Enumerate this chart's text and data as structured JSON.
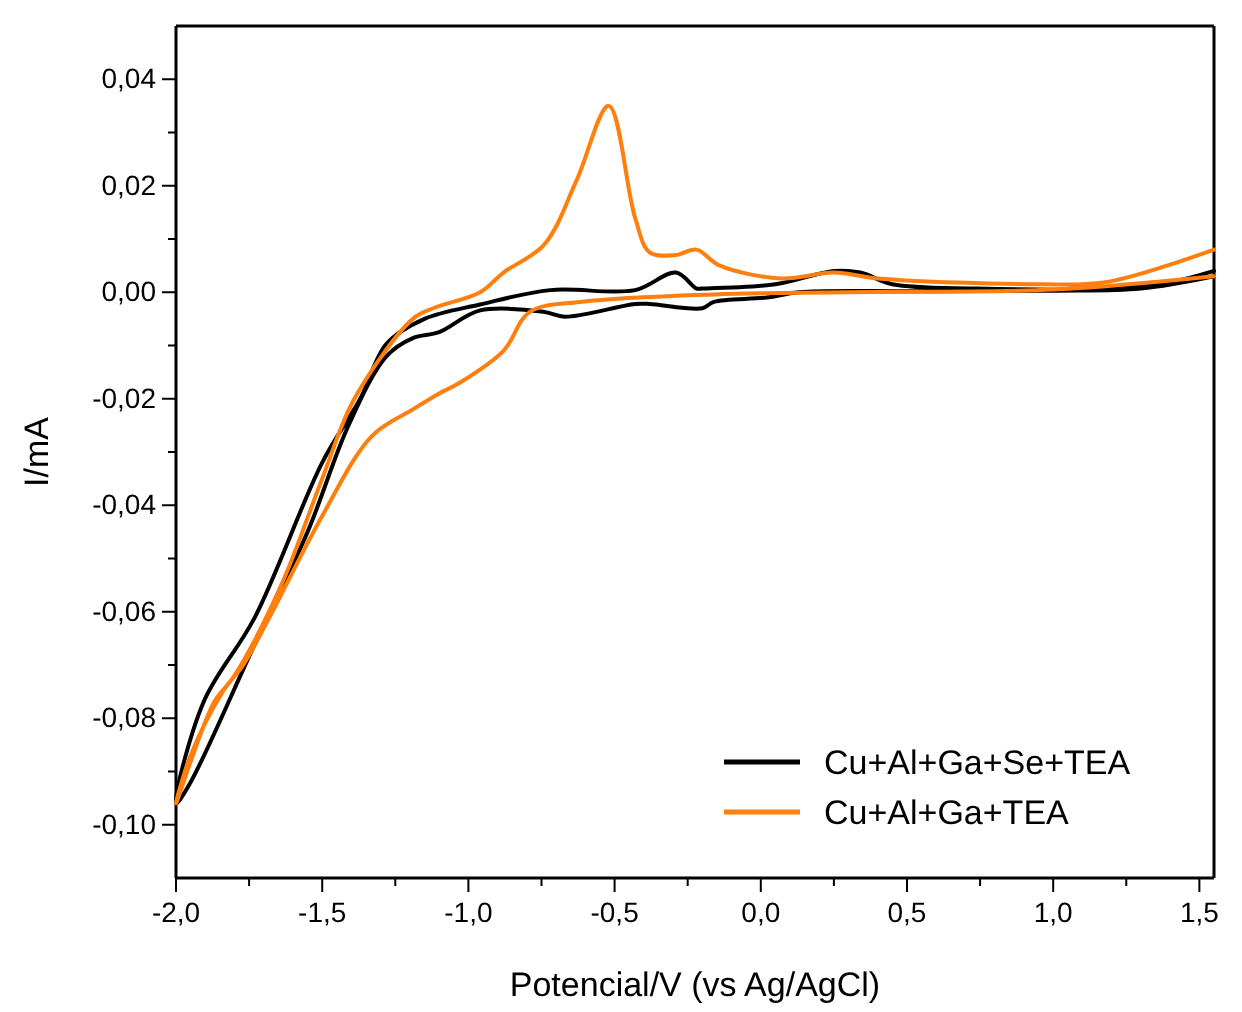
{
  "chart_data": {
    "type": "line",
    "xlabel": "Potencial/V (vs Ag/AgCl)",
    "ylabel": "I/mA",
    "xlim": [
      -2.0,
      1.55
    ],
    "ylim": [
      -0.11,
      0.05
    ],
    "xticks": [
      {
        "value": -2.0,
        "label": "-2,0"
      },
      {
        "value": -1.75,
        "label": null
      },
      {
        "value": -1.5,
        "label": "-1,5"
      },
      {
        "value": -1.25,
        "label": null
      },
      {
        "value": -1.0,
        "label": "-1,0"
      },
      {
        "value": -0.75,
        "label": null
      },
      {
        "value": -0.5,
        "label": "-0,5"
      },
      {
        "value": -0.25,
        "label": null
      },
      {
        "value": 0.0,
        "label": "0,0"
      },
      {
        "value": 0.25,
        "label": null
      },
      {
        "value": 0.5,
        "label": "0,5"
      },
      {
        "value": 0.75,
        "label": null
      },
      {
        "value": 1.0,
        "label": "1,0"
      },
      {
        "value": 1.25,
        "label": null
      },
      {
        "value": 1.5,
        "label": "1,5"
      }
    ],
    "yticks": [
      {
        "value": -0.1,
        "label": "-0,10"
      },
      {
        "value": -0.09,
        "label": null
      },
      {
        "value": -0.08,
        "label": "-0,08"
      },
      {
        "value": -0.07,
        "label": null
      },
      {
        "value": -0.06,
        "label": "-0,06"
      },
      {
        "value": -0.05,
        "label": null
      },
      {
        "value": -0.04,
        "label": "-0,04"
      },
      {
        "value": -0.03,
        "label": null
      },
      {
        "value": -0.02,
        "label": "-0,02"
      },
      {
        "value": -0.01,
        "label": null
      },
      {
        "value": 0.0,
        "label": "0,00"
      },
      {
        "value": 0.01,
        "label": null
      },
      {
        "value": 0.02,
        "label": "0,02"
      },
      {
        "value": 0.03,
        "label": null
      },
      {
        "value": 0.04,
        "label": "0,04"
      }
    ],
    "grid": false,
    "legend": "bottom right",
    "marker": "none",
    "line_style": "solid",
    "series": [
      {
        "name": "Cu+Al+Ga+Se+TEA",
        "color": "#000000",
        "x": [
          1.55,
          1.3,
          1.0,
          0.5,
          0.13,
          0.02,
          -0.16,
          -0.2,
          -0.38,
          -0.43,
          -0.67,
          -0.74,
          -0.96,
          -1.1,
          -1.19,
          -1.28,
          -1.41,
          -1.55,
          -1.73,
          -1.95,
          -2.0,
          -1.906,
          -1.73,
          -1.5,
          -1.37,
          -1.28,
          -1.15,
          -0.96,
          -0.72,
          -0.43,
          -0.29,
          -0.22,
          -0.2,
          0.05,
          0.25,
          0.34,
          0.45,
          0.74,
          1.19,
          1.41,
          1.55
        ],
        "values": [
          0.003,
          0.0007,
          0.0003,
          0.0002,
          0.0,
          -0.001,
          -0.0018,
          -0.003,
          -0.0022,
          -0.0022,
          -0.0046,
          -0.0037,
          -0.0034,
          -0.0075,
          -0.0086,
          -0.012,
          -0.025,
          -0.045,
          -0.066,
          -0.092,
          -0.096,
          -0.077,
          -0.061,
          -0.032,
          -0.02,
          -0.0097,
          -0.005,
          -0.0023,
          0.0004,
          0.0004,
          0.0037,
          0.0007,
          0.0007,
          0.0015,
          0.004,
          0.0037,
          0.0015,
          0.0007,
          0.0007,
          0.002,
          0.004
        ]
      },
      {
        "name": "Cu+Al+Ga+TEA",
        "color": "#ff7f0e",
        "x": [
          1.55,
          1.0,
          0.29,
          -0.16,
          -0.61,
          -0.79,
          -0.88,
          -1.03,
          -1.1,
          -1.19,
          -1.33,
          -1.5,
          -1.68,
          -1.77,
          -1.84,
          -1.95,
          -2.0,
          -1.87,
          -1.8,
          -1.64,
          -1.5,
          -1.39,
          -1.19,
          -1.12,
          -0.96,
          -0.88,
          -0.74,
          -0.63,
          -0.52,
          -0.43,
          -0.38,
          -0.29,
          -0.22,
          -0.14,
          0.07,
          0.25,
          0.4,
          0.96,
          1.19,
          1.55
        ],
        "values": [
          0.003,
          0.0005,
          0.0,
          -0.0004,
          -0.0018,
          -0.0037,
          -0.011,
          -0.017,
          -0.019,
          -0.022,
          -0.027,
          -0.042,
          -0.061,
          -0.07,
          -0.075,
          -0.087,
          -0.096,
          -0.077,
          -0.072,
          -0.055,
          -0.035,
          -0.02,
          -0.005,
          -0.003,
          0.0,
          0.0037,
          0.009,
          0.021,
          0.035,
          0.014,
          0.0075,
          0.007,
          0.008,
          0.005,
          0.0026,
          0.0037,
          0.0026,
          0.0015,
          0.002,
          0.008
        ]
      }
    ]
  }
}
